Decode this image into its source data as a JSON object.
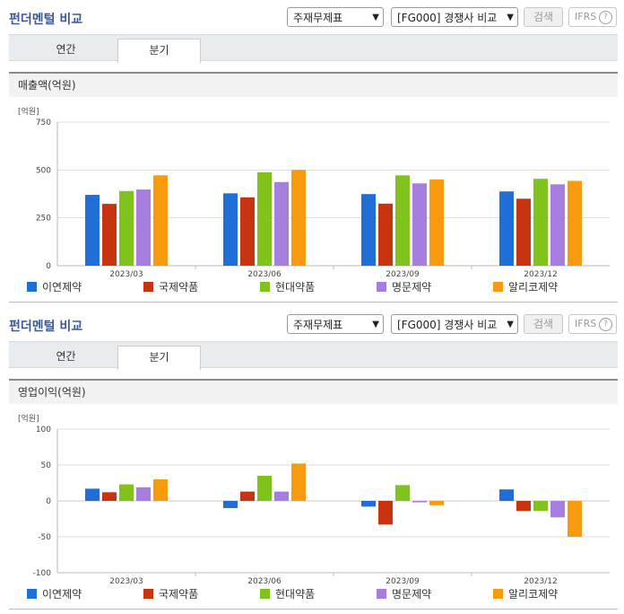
{
  "colors": {
    "이연제약": "#1f6fd6",
    "국제약품": "#c93410",
    "현대약품": "#7fc31c",
    "명문제약": "#a57ee0",
    "알리코제약": "#f79a0e"
  },
  "panels": [
    {
      "title": "펀더멘털 비교",
      "select_statement": "주재무제표",
      "select_compare": "[FG000] 경쟁사 비교",
      "search_label": "검색",
      "ifrs_label": "IFRS",
      "help_icon": "question-icon",
      "tabs": [
        "연간",
        "분기"
      ],
      "active_tab": "분기",
      "section_title": "매출액(억원)",
      "unit_label": "[억원]"
    },
    {
      "title": "펀더멘털 비교",
      "select_statement": "주재무제표",
      "select_compare": "[FG000] 경쟁사 비교",
      "search_label": "검색",
      "ifrs_label": "IFRS",
      "help_icon": "question-icon",
      "tabs": [
        "연간",
        "분기"
      ],
      "active_tab": "분기",
      "section_title": "영업이익(억원)",
      "unit_label": "[억원]"
    }
  ],
  "chart_data": [
    {
      "type": "bar",
      "title": "매출액(억원)",
      "ylabel": "[억원]",
      "categories": [
        "2023/03",
        "2023/06",
        "2023/09",
        "2023/12"
      ],
      "ylim": [
        0,
        750
      ],
      "yticks": [
        0,
        250,
        500,
        750
      ],
      "grid": true,
      "legend": "bottom",
      "series": [
        {
          "name": "이연제약",
          "values": [
            370,
            378,
            374,
            388
          ]
        },
        {
          "name": "국제약품",
          "values": [
            323,
            357,
            324,
            350
          ]
        },
        {
          "name": "현대약품",
          "values": [
            390,
            488,
            472,
            454
          ]
        },
        {
          "name": "명문제약",
          "values": [
            398,
            437,
            430,
            425
          ]
        },
        {
          "name": "알리코제약",
          "values": [
            472,
            500,
            451,
            443
          ]
        }
      ]
    },
    {
      "type": "bar",
      "title": "영업이익(억원)",
      "ylabel": "[억원]",
      "categories": [
        "2023/03",
        "2023/06",
        "2023/09",
        "2023/12"
      ],
      "ylim": [
        -100,
        100
      ],
      "yticks": [
        -100,
        -50,
        0,
        50,
        100
      ],
      "grid": true,
      "legend": "bottom",
      "series": [
        {
          "name": "이연제약",
          "values": [
            17,
            -10,
            -8,
            16
          ]
        },
        {
          "name": "국제약품",
          "values": [
            12,
            13,
            -33,
            -14
          ]
        },
        {
          "name": "현대약품",
          "values": [
            23,
            35,
            22,
            -14
          ]
        },
        {
          "name": "명문제약",
          "values": [
            19,
            13,
            -2,
            -23
          ]
        },
        {
          "name": "알리코제약",
          "values": [
            30,
            52,
            -6,
            -50
          ]
        }
      ]
    }
  ]
}
